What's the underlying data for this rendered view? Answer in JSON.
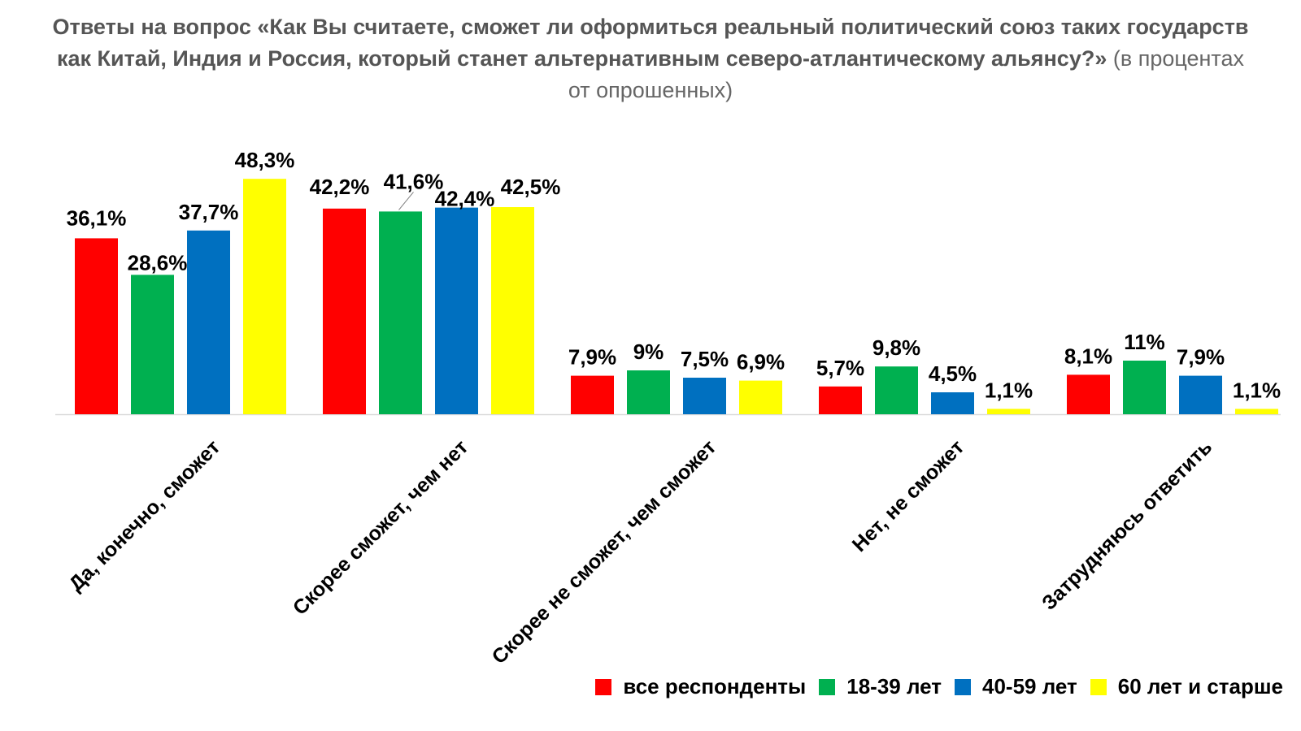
{
  "chart_data": {
    "type": "bar",
    "title_bold": "Ответы на вопрос «Как Вы считаете, сможет ли оформиться реальный политический союз таких государств как Китай, Индия и Россия, который станет альтернативным северо-атлантическому альянсу?»",
    "title_light": "(в процентах от опрошенных)",
    "categories": [
      "Да, конечно, сможет",
      "Скорее сможет, чем нет",
      "Скорее не сможет, чем сможет",
      "Нет, не сможет",
      "Затрудняюсь ответить"
    ],
    "series": [
      {
        "name": "все респонденты",
        "color": "#ff0000",
        "values": [
          36.1,
          42.2,
          7.9,
          5.7,
          8.1
        ],
        "labels": [
          "36,1%",
          "42,2%",
          "7,9%",
          "5,7%",
          "8,1%"
        ]
      },
      {
        "name": "18-39 лет",
        "color": "#00b050",
        "values": [
          28.6,
          41.6,
          9,
          9.8,
          11
        ],
        "labels": [
          "28,6%",
          "41,6%",
          "9%",
          "9,8%",
          "11%"
        ]
      },
      {
        "name": "40-59 лет",
        "color": "#0070c0",
        "values": [
          37.7,
          42.4,
          7.5,
          4.5,
          7.9
        ],
        "labels": [
          "37,7%",
          "42,4%",
          "7,5%",
          "4,5%",
          "7,9%"
        ]
      },
      {
        "name": "60 лет и старше",
        "color": "#ffff00",
        "values": [
          48.3,
          42.5,
          6.9,
          1.1,
          1.1
        ],
        "labels": [
          "48,3%",
          "42,5%",
          "6,9%",
          "1,1%",
          "1,1%"
        ]
      }
    ],
    "legend_position": "bottom-right",
    "grid": false
  }
}
